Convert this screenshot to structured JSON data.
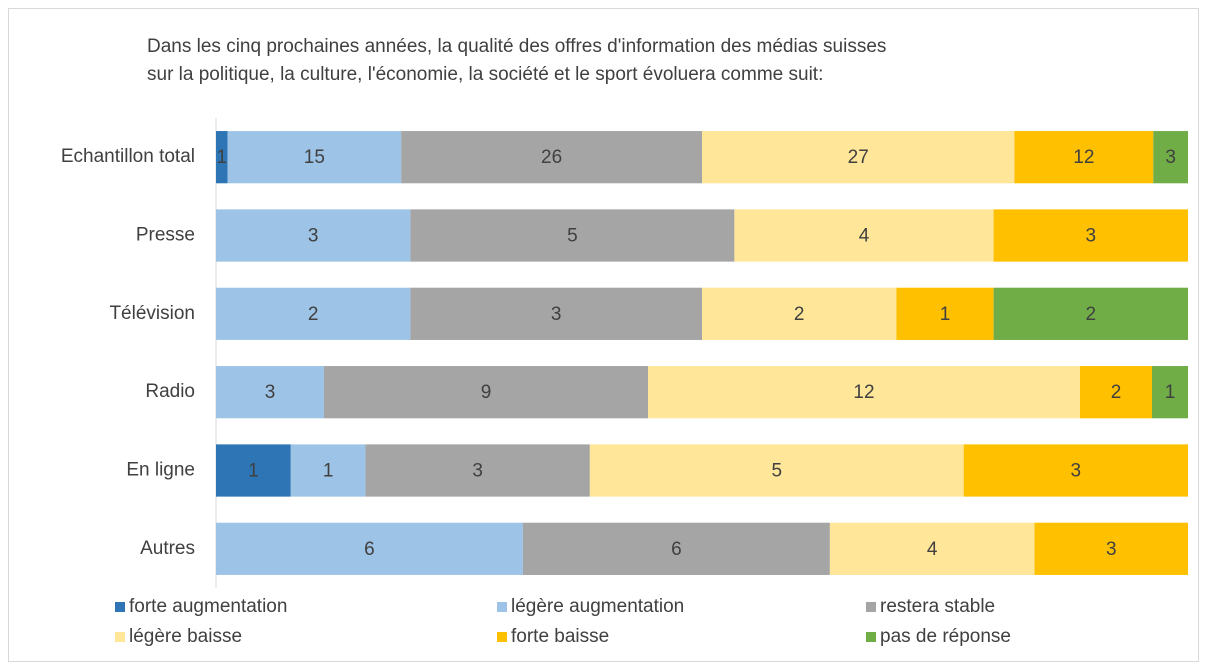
{
  "chart_data": {
    "type": "bar",
    "orientation": "horizontal",
    "stacking": "percent",
    "title": [
      "Dans les cinq prochaines années, la qualité des offres d'information des médias suisses",
      "sur la politique, la culture, l'économie, la société et le sport évoluera comme suit:"
    ],
    "categories": [
      "Echantillon total",
      "Presse",
      "Télévision",
      "Radio",
      "En ligne",
      "Autres"
    ],
    "series": [
      {
        "name": "forte augmentation",
        "color": "#2e75b6",
        "values": [
          1,
          null,
          null,
          null,
          1,
          null
        ]
      },
      {
        "name": "légère augmentation",
        "color": "#9dc3e6",
        "values": [
          15,
          3,
          2,
          3,
          1,
          6
        ]
      },
      {
        "name": "restera stable",
        "color": "#a5a5a5",
        "values": [
          26,
          5,
          3,
          9,
          3,
          6
        ]
      },
      {
        "name": "légère baisse",
        "color": "#ffe699",
        "values": [
          27,
          4,
          2,
          12,
          5,
          4
        ]
      },
      {
        "name": "forte baisse",
        "color": "#ffc000",
        "values": [
          12,
          3,
          1,
          2,
          3,
          3
        ]
      },
      {
        "name": "pas de réponse",
        "color": "#70ad47",
        "values": [
          3,
          null,
          2,
          1,
          null,
          null
        ]
      }
    ],
    "legend": "bottom"
  }
}
